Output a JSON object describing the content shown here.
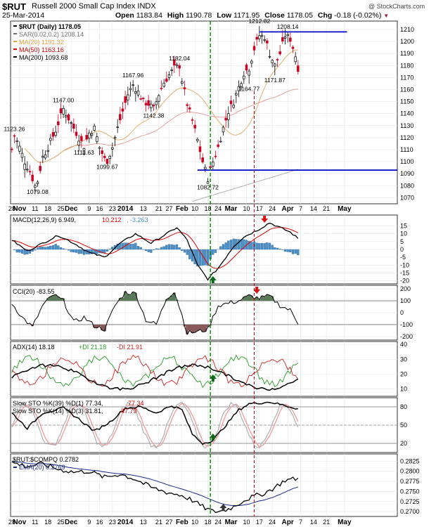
{
  "header": {
    "symbol": "$RUT",
    "name": "Russell 2000 Small Cap Index",
    "exchange": "INDX",
    "watermark": "@ StockCharts.com",
    "date": "25-Mar-2014",
    "open_label": "Open",
    "open": "1183.84",
    "high_label": "High",
    "high": "1190.78",
    "low_label": "Low",
    "low": "1171.95",
    "close_label": "Close",
    "close": "1178.05",
    "chg_label": "Chg",
    "chg": "-0.18 (-0.02%)"
  },
  "colors": {
    "up": "#000000",
    "down": "#cc0022",
    "ma20": "#e0b070",
    "ma50": "#e8a0a0",
    "ma200": "#b0b0b0",
    "hist": "#4a90c8",
    "macd_signal": "#dd0000",
    "support_line": "#0000cc",
    "buy_signal": "#0a6a1a",
    "sell_signal": "#dd1111",
    "dashed_green": "#008800",
    "dashed_red": "#cc0000",
    "cci_fill_up": "#5a7a5a",
    "cci_fill_down": "#8a5a5a"
  },
  "x_axis_labels": [
    "28",
    "Nov",
    "11",
    "18",
    "25",
    "Dec",
    "9",
    "16",
    "23",
    "2014",
    "13",
    "21",
    "27",
    "Feb",
    "10",
    "18",
    "24",
    "Mar",
    "10",
    "17",
    "24",
    "Apr",
    "7",
    "14",
    "21",
    "May"
  ],
  "x_axis_bold": [
    "Nov",
    "Dec",
    "2014",
    "Feb",
    "Mar",
    "Apr",
    "May"
  ],
  "panels": {
    "price": {
      "legend": [
        {
          "label": "$RUT (Daily) 1178.05",
          "color": "#000000"
        },
        {
          "label": "SAR(0.02,0.2) 1208.14",
          "color": "#707070"
        },
        {
          "label": "MA(20) 1191.32",
          "color": "#e0a040"
        },
        {
          "label": "MA(50) 1163.16",
          "color": "#cc0000"
        },
        {
          "label": "MA(200) 1093.68",
          "color": "#000000"
        }
      ]
    },
    "macd": {
      "legend_prefix": "MACD(12,26,9)",
      "macd_value": "6.949",
      "signal_value": "10.212",
      "hist_value": "-3.263"
    },
    "cci": {
      "legend": "CCI(20) -83.55"
    },
    "adx": {
      "legend_prefix": "ADX(14) 18.18",
      "pdi": "+DI 21.18",
      "mdi": "-DI 21.91"
    },
    "sto": {
      "legend_fast": "Slow STO %K(39) %D(1) 77.34,",
      "legend_fast_d": "77.34",
      "legend_slow": "Slow STO %K(14) %D(3) 31.81,",
      "legend_slow_d": "47.79"
    },
    "ratio": {
      "legend": "$RUT:$COMPQ 0.2782",
      "ema": "EMA(20) 0.2769"
    }
  },
  "chart_data": [
    {
      "type": "candlestick",
      "title": "Russell 2000 Small Cap Index",
      "ylim": [
        1065,
        1217
      ],
      "yticks": [
        1070,
        1080,
        1090,
        1100,
        1110,
        1120,
        1130,
        1140,
        1150,
        1160,
        1170,
        1180,
        1190,
        1200,
        1210
      ],
      "dates_range": [
        "2013-10-28",
        "2014-05-02"
      ],
      "annotations": [
        {
          "text": "1123.26",
          "bar": 1,
          "value": 1123.26
        },
        {
          "text": "1079.08",
          "bar": 10,
          "value": 1079.08
        },
        {
          "text": "1147.00",
          "bar": 20,
          "value": 1147.0
        },
        {
          "text": "1111.63",
          "bar": 28,
          "value": 1111.63
        },
        {
          "text": "1099.67",
          "bar": 37,
          "value": 1099.67
        },
        {
          "text": "1167.96",
          "bar": 47,
          "value": 1167.96
        },
        {
          "text": "1142.38",
          "bar": 55,
          "value": 1142.38
        },
        {
          "text": "1182.04",
          "bar": 65,
          "value": 1182.04
        },
        {
          "text": "1082.72",
          "bar": 76,
          "value": 1082.72
        },
        {
          "text": "1212.82",
          "bar": 96,
          "value": 1212.82
        },
        {
          "text": "1164.77",
          "bar": 92,
          "value": 1164.77
        },
        {
          "text": "1208.14",
          "bar": 107,
          "value": 1208.14
        },
        {
          "text": "1171.87",
          "bar": 102,
          "value": 1171.87
        }
      ],
      "lines": [
        {
          "name": "resistance",
          "y": 1208,
          "from_bar": 96,
          "to_bar": 130
        },
        {
          "name": "support",
          "y": 1093,
          "from_bar": 72,
          "to_bar": 150
        }
      ]
    },
    {
      "type": "line",
      "name": "MACD",
      "ylim": [
        -22,
        22
      ],
      "yticks": [
        -20,
        -15,
        -10,
        -5,
        0,
        5,
        10,
        15
      ]
    },
    {
      "type": "line",
      "name": "CCI",
      "ylim": [
        -230,
        230
      ],
      "yticks": [
        -200,
        -100,
        0,
        100,
        200
      ]
    },
    {
      "type": "line",
      "name": "ADX",
      "ylim": [
        5,
        42
      ],
      "yticks": [
        10,
        20,
        30,
        40
      ]
    },
    {
      "type": "line",
      "name": "Slow STO",
      "ylim": [
        5,
        95
      ],
      "yticks": [
        20,
        50,
        80
      ]
    },
    {
      "type": "line",
      "name": "$RUT:$COMPQ",
      "ylim": [
        0.2688,
        0.2843
      ],
      "yticks": [
        0.27,
        0.2725,
        0.275,
        0.2775,
        0.28,
        0.2825
      ]
    }
  ]
}
